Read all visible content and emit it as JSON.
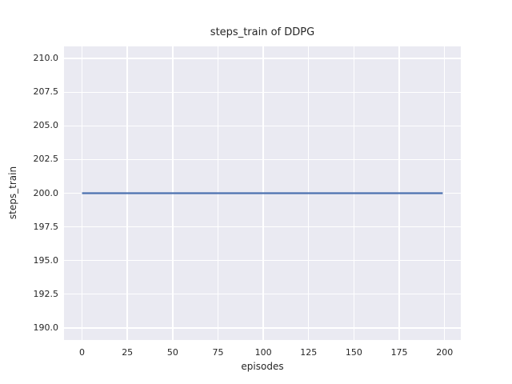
{
  "chart_data": {
    "type": "line",
    "title": "steps_train of DDPG",
    "xlabel": "episodes",
    "ylabel": "steps_train",
    "xlim": [
      -9.95,
      208.95
    ],
    "ylim": [
      189.1,
      210.9
    ],
    "xticks": [
      0,
      25,
      50,
      75,
      100,
      125,
      150,
      175,
      200
    ],
    "xtick_labels": [
      "0",
      "25",
      "50",
      "75",
      "100",
      "125",
      "150",
      "175",
      "200"
    ],
    "yticks": [
      190,
      192.5,
      195,
      197.5,
      200,
      202.5,
      205,
      207.5,
      210
    ],
    "ytick_labels": [
      "190.0",
      "192.5",
      "195.0",
      "197.5",
      "200.0",
      "202.5",
      "205.0",
      "207.5",
      "210.0"
    ],
    "grid": true,
    "legend": "none",
    "series": [
      {
        "name": "steps_train",
        "color": "#4c72b0",
        "line_width": 2.2,
        "x": [
          0,
          199
        ],
        "y": [
          200,
          200
        ],
        "note": "constant value 200 steps for every episode from 0 to 199"
      }
    ],
    "colors": {
      "figure_background": "#ffffff",
      "plot_background": "#eaeaf2",
      "gridline": "#ffffff",
      "text": "#262626"
    }
  }
}
